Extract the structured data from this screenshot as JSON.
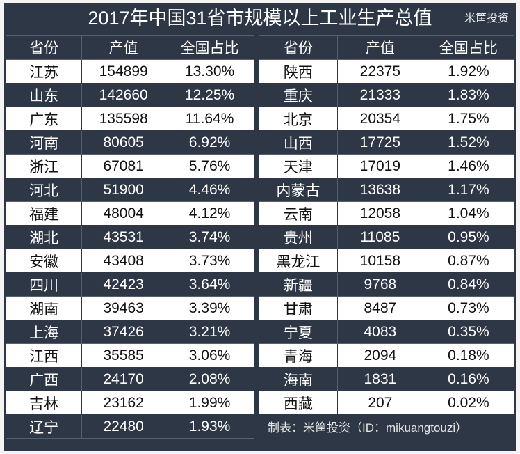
{
  "title": "2017年中国31省市规模以上工业生产总值",
  "headers": [
    "省份",
    "产值",
    "全国占比"
  ],
  "left_rows": [
    [
      "江苏",
      "154899",
      "13.30%"
    ],
    [
      "山东",
      "142660",
      "12.25%"
    ],
    [
      "广东",
      "135598",
      "11.64%"
    ],
    [
      "河南",
      "80605",
      "6.92%"
    ],
    [
      "浙江",
      "67081",
      "5.76%"
    ],
    [
      "河北",
      "51900",
      "4.46%"
    ],
    [
      "福建",
      "48004",
      "4.12%"
    ],
    [
      "湖北",
      "43531",
      "3.74%"
    ],
    [
      "安徽",
      "43408",
      "3.73%"
    ],
    [
      "四川",
      "42423",
      "3.64%"
    ],
    [
      "湖南",
      "39463",
      "3.39%"
    ],
    [
      "上海",
      "37426",
      "3.21%"
    ],
    [
      "江西",
      "35585",
      "3.06%"
    ],
    [
      "广西",
      "24170",
      "2.08%"
    ],
    [
      "吉林",
      "23162",
      "1.99%"
    ],
    [
      "辽宁",
      "22480",
      "1.93%"
    ]
  ],
  "right_rows": [
    [
      "陕西",
      "22375",
      "1.92%"
    ],
    [
      "重庆",
      "21333",
      "1.83%"
    ],
    [
      "北京",
      "20354",
      "1.75%"
    ],
    [
      "山西",
      "17725",
      "1.52%"
    ],
    [
      "天津",
      "17019",
      "1.46%"
    ],
    [
      "内蒙古",
      "13638",
      "1.17%"
    ],
    [
      "云南",
      "12058",
      "1.04%"
    ],
    [
      "贵州",
      "11085",
      "0.95%"
    ],
    [
      "黑龙江",
      "10158",
      "0.87%"
    ],
    [
      "新疆",
      "9768",
      "0.84%"
    ],
    [
      "甘肃",
      "8487",
      "0.73%"
    ],
    [
      "宁夏",
      "4083",
      "0.35%"
    ],
    [
      "青海",
      "2094",
      "0.18%"
    ],
    [
      "海南",
      "1831",
      "0.16%"
    ],
    [
      "西藏",
      "207",
      "0.02%"
    ]
  ],
  "footer": "制表：米筐投资（ID：mikuangtouzi）",
  "watermark": "米筐投资",
  "colors": {
    "dark": "#2d3746",
    "light": "#ffffff"
  }
}
